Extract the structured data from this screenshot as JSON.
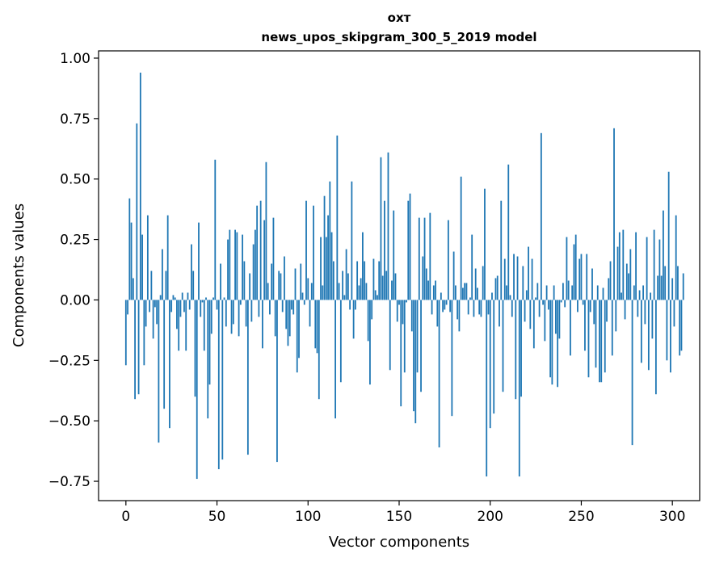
{
  "chart_data": {
    "type": "bar",
    "title": "охт",
    "subtitle": "news_upos_skipgram_300_5_2019 model",
    "xlabel": "Vector components",
    "ylabel": "Components values",
    "xlim": [
      -15,
      315
    ],
    "ylim": [
      -0.83,
      1.03
    ],
    "xticks": [
      0,
      50,
      100,
      150,
      200,
      250,
      300
    ],
    "xtick_labels": [
      "0",
      "50",
      "100",
      "150",
      "200",
      "250",
      "300"
    ],
    "yticks": [
      -0.75,
      -0.5,
      -0.25,
      0.0,
      0.25,
      0.5,
      0.75,
      1.0
    ],
    "ytick_labels": [
      "−0.75",
      "−0.50",
      "−0.25",
      "0.00",
      "0.25",
      "0.50",
      "0.75",
      "1.00"
    ],
    "bar_color": "#1f77b4",
    "values": [
      -0.27,
      -0.06,
      0.42,
      0.32,
      0.09,
      -0.41,
      0.73,
      -0.39,
      0.94,
      0.27,
      -0.27,
      -0.11,
      0.35,
      -0.05,
      0.12,
      -0.16,
      -0.03,
      -0.1,
      -0.59,
      0.02,
      0.21,
      -0.45,
      0.12,
      0.35,
      -0.53,
      -0.05,
      0.02,
      0.01,
      -0.12,
      -0.21,
      -0.07,
      0.03,
      -0.05,
      -0.21,
      0.03,
      -0.04,
      0.23,
      0.12,
      -0.4,
      -0.74,
      0.32,
      -0.07,
      -0.01,
      -0.21,
      0.01,
      -0.49,
      -0.35,
      -0.14,
      0.01,
      0.58,
      -0.04,
      -0.7,
      0.15,
      -0.66,
      0.01,
      -0.11,
      0.25,
      0.29,
      -0.14,
      -0.1,
      0.29,
      0.28,
      -0.15,
      -0.02,
      0.27,
      0.16,
      -0.11,
      -0.64,
      0.11,
      -0.09,
      0.23,
      0.29,
      0.39,
      -0.07,
      0.41,
      -0.2,
      0.33,
      0.57,
      0.07,
      -0.06,
      0.15,
      0.34,
      -0.15,
      -0.67,
      0.12,
      0.11,
      -0.05,
      0.18,
      -0.12,
      -0.19,
      -0.15,
      -0.04,
      -0.06,
      0.13,
      -0.3,
      -0.24,
      0.15,
      0.03,
      -0.02,
      0.41,
      0.09,
      -0.11,
      0.07,
      0.39,
      -0.2,
      -0.22,
      -0.41,
      0.26,
      0.06,
      0.43,
      0.26,
      0.35,
      0.49,
      0.28,
      0.16,
      -0.49,
      0.68,
      0.07,
      -0.34,
      0.12,
      0.02,
      0.21,
      0.11,
      -0.04,
      0.49,
      -0.16,
      -0.04,
      0.16,
      0.06,
      0.09,
      0.28,
      0.16,
      0.07,
      -0.17,
      -0.35,
      -0.08,
      0.17,
      0.04,
      0.02,
      0.16,
      0.59,
      0.1,
      0.41,
      0.12,
      0.61,
      -0.29,
      0.08,
      0.37,
      0.11,
      -0.09,
      -0.02,
      -0.44,
      -0.1,
      -0.3,
      -0.01,
      0.41,
      0.44,
      -0.13,
      -0.46,
      -0.51,
      -0.3,
      0.34,
      -0.38,
      0.18,
      0.34,
      0.13,
      0.08,
      0.36,
      -0.06,
      0.06,
      0.08,
      -0.11,
      -0.61,
      0.03,
      -0.05,
      -0.04,
      -0.02,
      0.33,
      -0.05,
      -0.48,
      0.2,
      0.06,
      -0.08,
      -0.13,
      0.51,
      0.05,
      0.07,
      0.07,
      -0.06,
      0.01,
      0.27,
      -0.07,
      0.13,
      0.05,
      -0.06,
      -0.07,
      0.14,
      0.46,
      -0.73,
      -0.06,
      -0.53,
      0.03,
      -0.47,
      0.09,
      0.1,
      -0.11,
      0.41,
      -0.38,
      0.17,
      0.06,
      0.56,
      0.02,
      -0.07,
      0.19,
      -0.41,
      0.18,
      -0.73,
      -0.4,
      0.14,
      -0.09,
      0.04,
      0.22,
      -0.12,
      0.17,
      -0.2,
      0.01,
      0.07,
      -0.07,
      0.69,
      -0.02,
      -0.17,
      0.06,
      -0.04,
      -0.32,
      -0.35,
      0.06,
      -0.14,
      -0.36,
      -0.16,
      -0.01,
      0.07,
      -0.03,
      0.26,
      0.08,
      -0.23,
      0.06,
      0.23,
      0.27,
      -0.05,
      0.17,
      0.19,
      -0.02,
      -0.21,
      0.19,
      -0.32,
      -0.05,
      0.13,
      -0.1,
      -0.28,
      0.06,
      -0.34,
      -0.34,
      0.05,
      -0.3,
      -0.09,
      0.09,
      0.16,
      -0.23,
      0.71,
      -0.13,
      0.22,
      0.28,
      0.03,
      0.29,
      -0.08,
      0.15,
      0.11,
      0.21,
      -0.6,
      0.06,
      0.28,
      -0.07,
      0.04,
      -0.26,
      0.06,
      -0.1,
      0.26,
      -0.29,
      0.03,
      -0.16,
      0.29,
      -0.39,
      0.1,
      0.25,
      0.1,
      0.37,
      0.14,
      -0.25,
      0.53,
      -0.3,
      0.09,
      -0.11,
      0.35,
      0.14,
      -0.23,
      -0.21,
      0.11
    ]
  }
}
